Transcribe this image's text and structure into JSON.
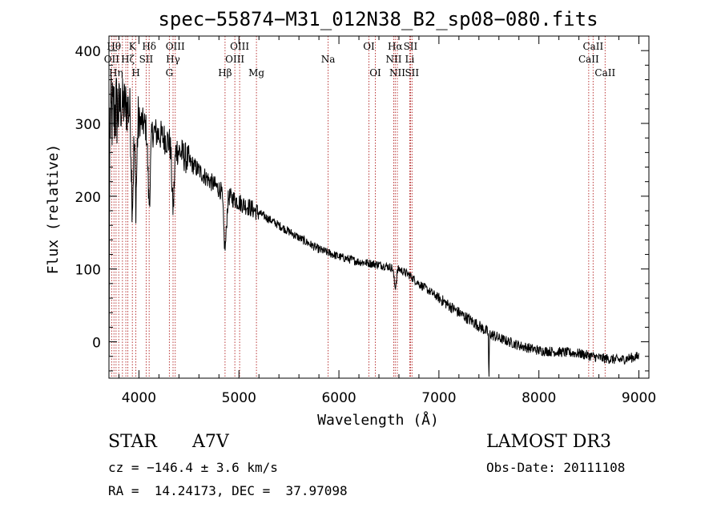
{
  "chart_data": {
    "type": "line",
    "title": "spec−55874−M31_012N38_B2_sp08−080.fits",
    "xlabel": "Wavelength (Å)",
    "ylabel": "Flux (relative)",
    "xlim": [
      3700,
      9100
    ],
    "ylim": [
      -50,
      420
    ],
    "xticks": [
      4000,
      5000,
      6000,
      7000,
      8000,
      9000
    ],
    "yticks": [
      0,
      100,
      200,
      300,
      400
    ],
    "x_tick_labels": [
      "4000",
      "5000",
      "6000",
      "7000",
      "8000",
      "9000"
    ],
    "y_tick_labels": [
      "0",
      "100",
      "200",
      "300",
      "400"
    ],
    "line_color": "#000000",
    "marker_color": "#b22222",
    "continuum_anchors": [
      [
        3700,
        300
      ],
      [
        3750,
        315
      ],
      [
        3800,
        322
      ],
      [
        3850,
        325
      ],
      [
        3900,
        320
      ],
      [
        3950,
        315
      ],
      [
        4000,
        305
      ],
      [
        4100,
        292
      ],
      [
        4200,
        285
      ],
      [
        4300,
        275
      ],
      [
        4400,
        262
      ],
      [
        4500,
        248
      ],
      [
        4600,
        235
      ],
      [
        4700,
        222
      ],
      [
        4800,
        210
      ],
      [
        4900,
        200
      ],
      [
        5000,
        192
      ],
      [
        5100,
        185
      ],
      [
        5200,
        177
      ],
      [
        5400,
        160
      ],
      [
        5600,
        143
      ],
      [
        5800,
        127
      ],
      [
        6000,
        117
      ],
      [
        6200,
        110
      ],
      [
        6400,
        106
      ],
      [
        6500,
        103
      ],
      [
        6600,
        100
      ],
      [
        6700,
        92
      ],
      [
        6800,
        80
      ],
      [
        7000,
        60
      ],
      [
        7200,
        40
      ],
      [
        7400,
        22
      ],
      [
        7500,
        12
      ],
      [
        7600,
        5
      ],
      [
        7800,
        -5
      ],
      [
        8000,
        -12
      ],
      [
        8200,
        -14
      ],
      [
        8400,
        -16
      ],
      [
        8600,
        -22
      ],
      [
        8800,
        -25
      ],
      [
        9000,
        -20
      ]
    ],
    "absorption_dips": [
      {
        "x": 3934,
        "depth": 120,
        "width": 10
      },
      {
        "x": 3969,
        "depth": 110,
        "width": 10
      },
      {
        "x": 4102,
        "depth": 100,
        "width": 12
      },
      {
        "x": 4341,
        "depth": 85,
        "width": 12
      },
      {
        "x": 4861,
        "depth": 75,
        "width": 14
      },
      {
        "x": 6563,
        "depth": 25,
        "width": 12
      },
      {
        "x": 7500,
        "depth": 65,
        "width": 3
      }
    ],
    "line_markers": [
      {
        "x": 3727,
        "label": "OII",
        "row": 1
      },
      {
        "x": 3750,
        "label": "Hθ",
        "row": 0
      },
      {
        "x": 3771,
        "label": "Hη",
        "row": 2
      },
      {
        "x": 3798,
        "label": "",
        "row": 0
      },
      {
        "x": 3835,
        "label": "",
        "row": 1
      },
      {
        "x": 3869,
        "label": "",
        "row": 2
      },
      {
        "x": 3889,
        "label": "Hζ",
        "row": 1
      },
      {
        "x": 3934,
        "label": "K",
        "row": 0
      },
      {
        "x": 3969,
        "label": "H",
        "row": 2
      },
      {
        "x": 4072,
        "label": "SII",
        "row": 1
      },
      {
        "x": 4102,
        "label": "Hδ",
        "row": 0
      },
      {
        "x": 4304,
        "label": "G",
        "row": 2
      },
      {
        "x": 4341,
        "label": "Hγ",
        "row": 1
      },
      {
        "x": 4363,
        "label": "OIII",
        "row": 0
      },
      {
        "x": 4861,
        "label": "Hβ",
        "row": 2
      },
      {
        "x": 4959,
        "label": "OIII",
        "row": 1
      },
      {
        "x": 5007,
        "label": "OIII",
        "row": 0
      },
      {
        "x": 5175,
        "label": "Mg",
        "row": 2
      },
      {
        "x": 5892,
        "label": "Na",
        "row": 1
      },
      {
        "x": 6300,
        "label": "OI",
        "row": 0
      },
      {
        "x": 6364,
        "label": "OI",
        "row": 2
      },
      {
        "x": 6548,
        "label": "NII",
        "row": 1
      },
      {
        "x": 6563,
        "label": "Hα",
        "row": 0
      },
      {
        "x": 6584,
        "label": "NII",
        "row": 2
      },
      {
        "x": 6708,
        "label": "Li",
        "row": 1
      },
      {
        "x": 6716,
        "label": "SII",
        "row": 0
      },
      {
        "x": 6731,
        "label": "SII",
        "row": 2
      },
      {
        "x": 8498,
        "label": "CaII",
        "row": 1
      },
      {
        "x": 8542,
        "label": "CaII",
        "row": 0
      },
      {
        "x": 8662,
        "label": "CaII",
        "row": 2
      }
    ]
  },
  "info": {
    "class": "STAR",
    "subclass": "A7V",
    "survey": "LAMOST DR3",
    "cz": "cz = −146.4 ± 3.6 km/s",
    "obs_date": "Obs-Date: 20111108",
    "coords": "RA =  14.24173, DEC =  37.97098"
  }
}
